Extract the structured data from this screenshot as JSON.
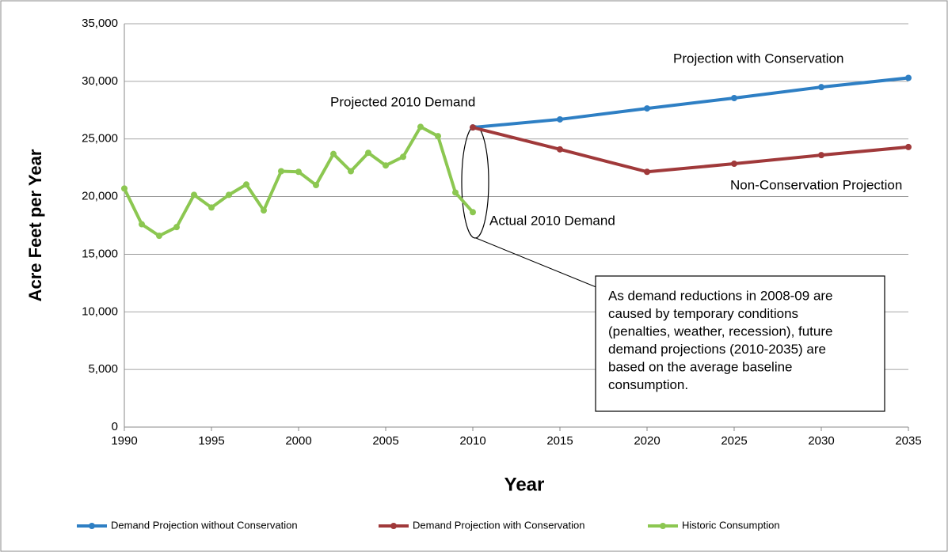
{
  "chart_data": {
    "type": "line",
    "x_label": "Year",
    "y_label": "Acre Feet per Year",
    "xlim": [
      1990,
      2035
    ],
    "xticks": [
      1990,
      1995,
      2000,
      2005,
      2010,
      2015,
      2020,
      2025,
      2030,
      2035
    ],
    "ylim": [
      0,
      35000
    ],
    "yticks": [
      {
        "value": 0,
        "label": "0"
      },
      {
        "value": 5000,
        "label": "5,000"
      },
      {
        "value": 10000,
        "label": "10,000"
      },
      {
        "value": 15000,
        "label": "15,000"
      },
      {
        "value": 20000,
        "label": "20,000"
      },
      {
        "value": 25000,
        "label": "25,000"
      },
      {
        "value": 30000,
        "label": "30,000"
      },
      {
        "value": 35000,
        "label": "35,000"
      }
    ],
    "grid": true,
    "legend": "bottom",
    "series": [
      {
        "name": "Demand Projection without Conservation",
        "color": "#2e7fc4",
        "x": [
          2010,
          2015,
          2020,
          2025,
          2030,
          2035
        ],
        "values": [
          26000,
          26700,
          27650,
          28550,
          29500,
          30300
        ]
      },
      {
        "name": "Demand Projection with Conservation",
        "color": "#a0393a",
        "x": [
          2010,
          2015,
          2020,
          2025,
          2030,
          2035
        ],
        "values": [
          26000,
          24100,
          22150,
          22850,
          23600,
          24300
        ]
      },
      {
        "name": "Historic Consumption",
        "color": "#8cc751",
        "x": [
          1990,
          1991,
          1992,
          1993,
          1994,
          1995,
          1996,
          1997,
          1998,
          1999,
          2000,
          2001,
          2002,
          2003,
          2004,
          2005,
          2006,
          2007,
          2008,
          2009,
          2010
        ],
        "values": [
          20700,
          17600,
          16600,
          17350,
          20150,
          19050,
          20150,
          21050,
          18800,
          22200,
          22150,
          21000,
          23700,
          22200,
          23800,
          22700,
          23450,
          26050,
          25250,
          20350,
          18650
        ]
      }
    ],
    "annotations": [
      "Projection with Conservation",
      "Projected 2010 Demand",
      "Non-Conservation Projection",
      "Actual 2010 Demand"
    ],
    "callout": [
      "As demand reductions in 2008-09 are",
      "caused by temporary conditions",
      "(penalties, weather, recession), future",
      "demand projections (2010-2035) are",
      "based on the average baseline",
      "consumption."
    ]
  }
}
